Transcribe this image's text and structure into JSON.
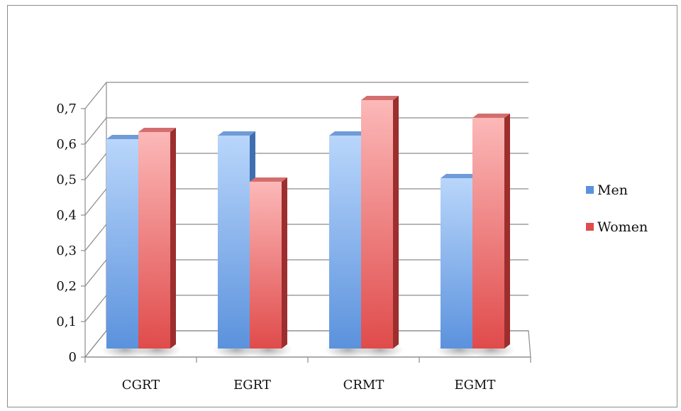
{
  "chart_data": {
    "type": "bar",
    "categories": [
      "CGRT",
      "EGRT",
      "CRMT",
      "EGMT"
    ],
    "series": [
      {
        "name": "Men",
        "values": [
          0.59,
          0.6,
          0.6,
          0.48
        ]
      },
      {
        "name": "Women",
        "values": [
          0.61,
          0.47,
          0.7,
          0.65
        ]
      }
    ],
    "ylim": [
      0,
      0.7
    ],
    "yticks": [
      "0",
      "0,1",
      "0,2",
      "0,3",
      "0,4",
      "0,5",
      "0,6",
      "0,7"
    ],
    "grid": true,
    "legend_position": "right",
    "title": "",
    "xlabel": "",
    "ylabel": "",
    "colors": {
      "men": "#5b92dd",
      "men_light": "#b9d6fb",
      "women": "#e04b4b",
      "women_light": "#fcb8b8"
    }
  }
}
